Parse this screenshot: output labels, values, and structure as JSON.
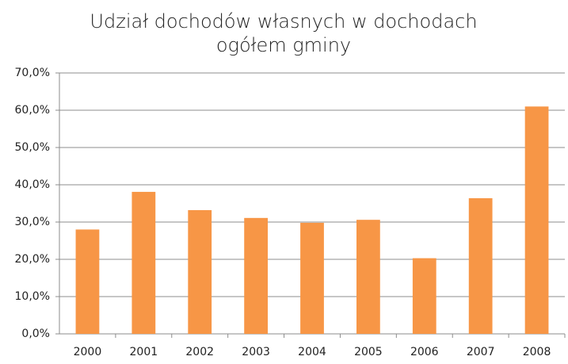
{
  "chart_data": {
    "type": "bar",
    "title": "Udział dochodów własnych w dochodach ogółem gminy",
    "categories": [
      "2000",
      "2001",
      "2002",
      "2003",
      "2004",
      "2005",
      "2006",
      "2007",
      "2008"
    ],
    "values": [
      28.0,
      38.1,
      33.2,
      31.1,
      29.8,
      30.6,
      20.3,
      36.4,
      61.0
    ],
    "color": "#f79646",
    "ylim": [
      0,
      70
    ],
    "yticks": [
      {
        "value": 0,
        "label": "0,0%"
      },
      {
        "value": 10,
        "label": "10,0%"
      },
      {
        "value": 20,
        "label": "20,0%"
      },
      {
        "value": 30,
        "label": "30,0%"
      },
      {
        "value": 40,
        "label": "40,0%"
      },
      {
        "value": 50,
        "label": "50,0%"
      },
      {
        "value": 60,
        "label": "60,0%"
      },
      {
        "value": 70,
        "label": "70,0%"
      }
    ],
    "grid": true
  }
}
